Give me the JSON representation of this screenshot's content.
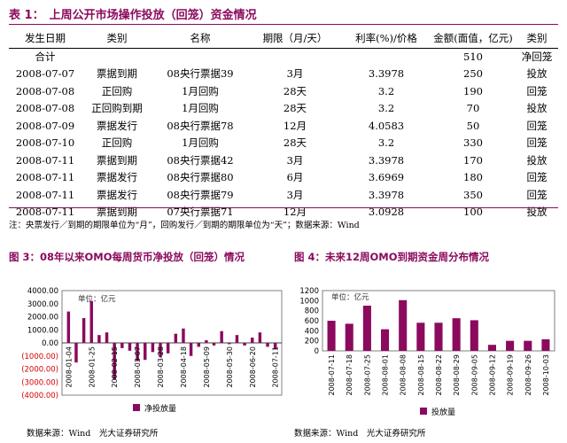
{
  "table1": {
    "label": "表 1：",
    "title": "上周公开市场操作投放（回笼）资金情况",
    "headers": [
      "发生日期",
      "类别",
      "名称",
      "期限（月/天）",
      "利率(%)/价格",
      "金额(面值，亿元)",
      "类别"
    ],
    "total_row": {
      "label": "合计",
      "amount": "510",
      "kind": "净回笼"
    },
    "rows": [
      [
        "2008-07-07",
        "票据到期",
        "08央行票据39",
        "3月",
        "3.3978",
        "250",
        "投放"
      ],
      [
        "2008-07-08",
        "正回购",
        "1月回购",
        "28天",
        "3.2",
        "190",
        "回笼"
      ],
      [
        "2008-07-08",
        "正回购到期",
        "1月回购",
        "28天",
        "3.2",
        "70",
        "投放"
      ],
      [
        "2008-07-09",
        "票据发行",
        "08央行票据78",
        "12月",
        "4.0583",
        "50",
        "回笼"
      ],
      [
        "2008-07-10",
        "正回购",
        "1月回购",
        "28天",
        "3.2",
        "330",
        "回笼"
      ],
      [
        "2008-07-11",
        "票据到期",
        "08央行票据42",
        "3月",
        "3.3978",
        "170",
        "投放"
      ],
      [
        "2008-07-11",
        "票据发行",
        "08央行票据80",
        "6月",
        "3.6969",
        "180",
        "回笼"
      ],
      [
        "2008-07-11",
        "票据发行",
        "08央行票据79",
        "3月",
        "3.3978",
        "350",
        "回笼"
      ],
      [
        "2008-07-11",
        "票据到期",
        "07央行票据71",
        "12月",
        "3.0928",
        "100",
        "投放"
      ]
    ],
    "note": "注：央票发行／到期的期限单位为“月”，回购发行／到期的期限单位为“天”；数据来源：Wind"
  },
  "figure3": {
    "label": "图 3：",
    "title": "08年以来OMO每周货币净投放（回笼）情况",
    "source": "数据来源：Wind　光大证券研究所",
    "colors": {
      "bar": "#8b0a5e",
      "negative_text": "#d40000",
      "frame": "#808080"
    },
    "chart_data": {
      "type": "bar",
      "title": "08年以来OMO每周货币净投放（回笼）情况",
      "unit_label": "单位：亿元",
      "legend": "净投放量",
      "ylim": [
        -4000,
        4000
      ],
      "yticks": [
        "4000.00",
        "3000.00",
        "2000.00",
        "1000.00",
        "0.00",
        "(1000.00)",
        "(2000.00)",
        "(3000.00)",
        "(4000.00)"
      ],
      "tick_labels": [
        "2008-01-04",
        "2008-01-25",
        "2008-02-15",
        "2008-03-07",
        "2008-03-28",
        "2008-04-18",
        "2008-05-09",
        "2008-05-30",
        "2008-06-20",
        "2008-07-11"
      ],
      "x": [
        "2008-01-04",
        "2008-01-11",
        "2008-01-18",
        "2008-01-25",
        "2008-02-01",
        "2008-02-08",
        "2008-02-15",
        "2008-02-22",
        "2008-02-29",
        "2008-03-07",
        "2008-03-14",
        "2008-03-21",
        "2008-03-28",
        "2008-04-04",
        "2008-04-11",
        "2008-04-18",
        "2008-04-25",
        "2008-05-02",
        "2008-05-09",
        "2008-05-16",
        "2008-05-23",
        "2008-05-30",
        "2008-06-06",
        "2008-06-13",
        "2008-06-20",
        "2008-06-27",
        "2008-07-04",
        "2008-07-11"
      ],
      "values": [
        2400,
        -1500,
        1900,
        3200,
        600,
        800,
        -2800,
        -400,
        -600,
        -1400,
        -1300,
        -700,
        -1100,
        -800,
        700,
        1100,
        -1000,
        -300,
        200,
        -200,
        900,
        -100,
        600,
        -200,
        400,
        800,
        -300,
        -500
      ]
    }
  },
  "figure4": {
    "label": "图 4：",
    "title": "未来12周OMO到期资金周分布情况",
    "source": "数据来源：Wind　光大证券研究所",
    "colors": {
      "bar": "#8b0a5e",
      "frame": "#808080"
    },
    "chart_data": {
      "type": "bar",
      "title": "未来12周OMO到期资金周分布情况",
      "unit_label": "单位：亿元",
      "legend": "投放量",
      "ylim": [
        0,
        1200
      ],
      "yticks": [
        "1200",
        "1000",
        "800",
        "600",
        "400",
        "200",
        "0"
      ],
      "categories": [
        "2008-07-11",
        "2008-07-18",
        "2008-07-25",
        "2008-08-01",
        "2008-08-08",
        "2008-08-15",
        "2008-08-22",
        "2008-08-29",
        "2008-09-05",
        "2008-09-12",
        "2008-09-19",
        "2008-09-26",
        "2008-10-03"
      ],
      "values": [
        600,
        540,
        900,
        430,
        1010,
        560,
        560,
        650,
        610,
        120,
        200,
        200,
        230
      ]
    }
  }
}
